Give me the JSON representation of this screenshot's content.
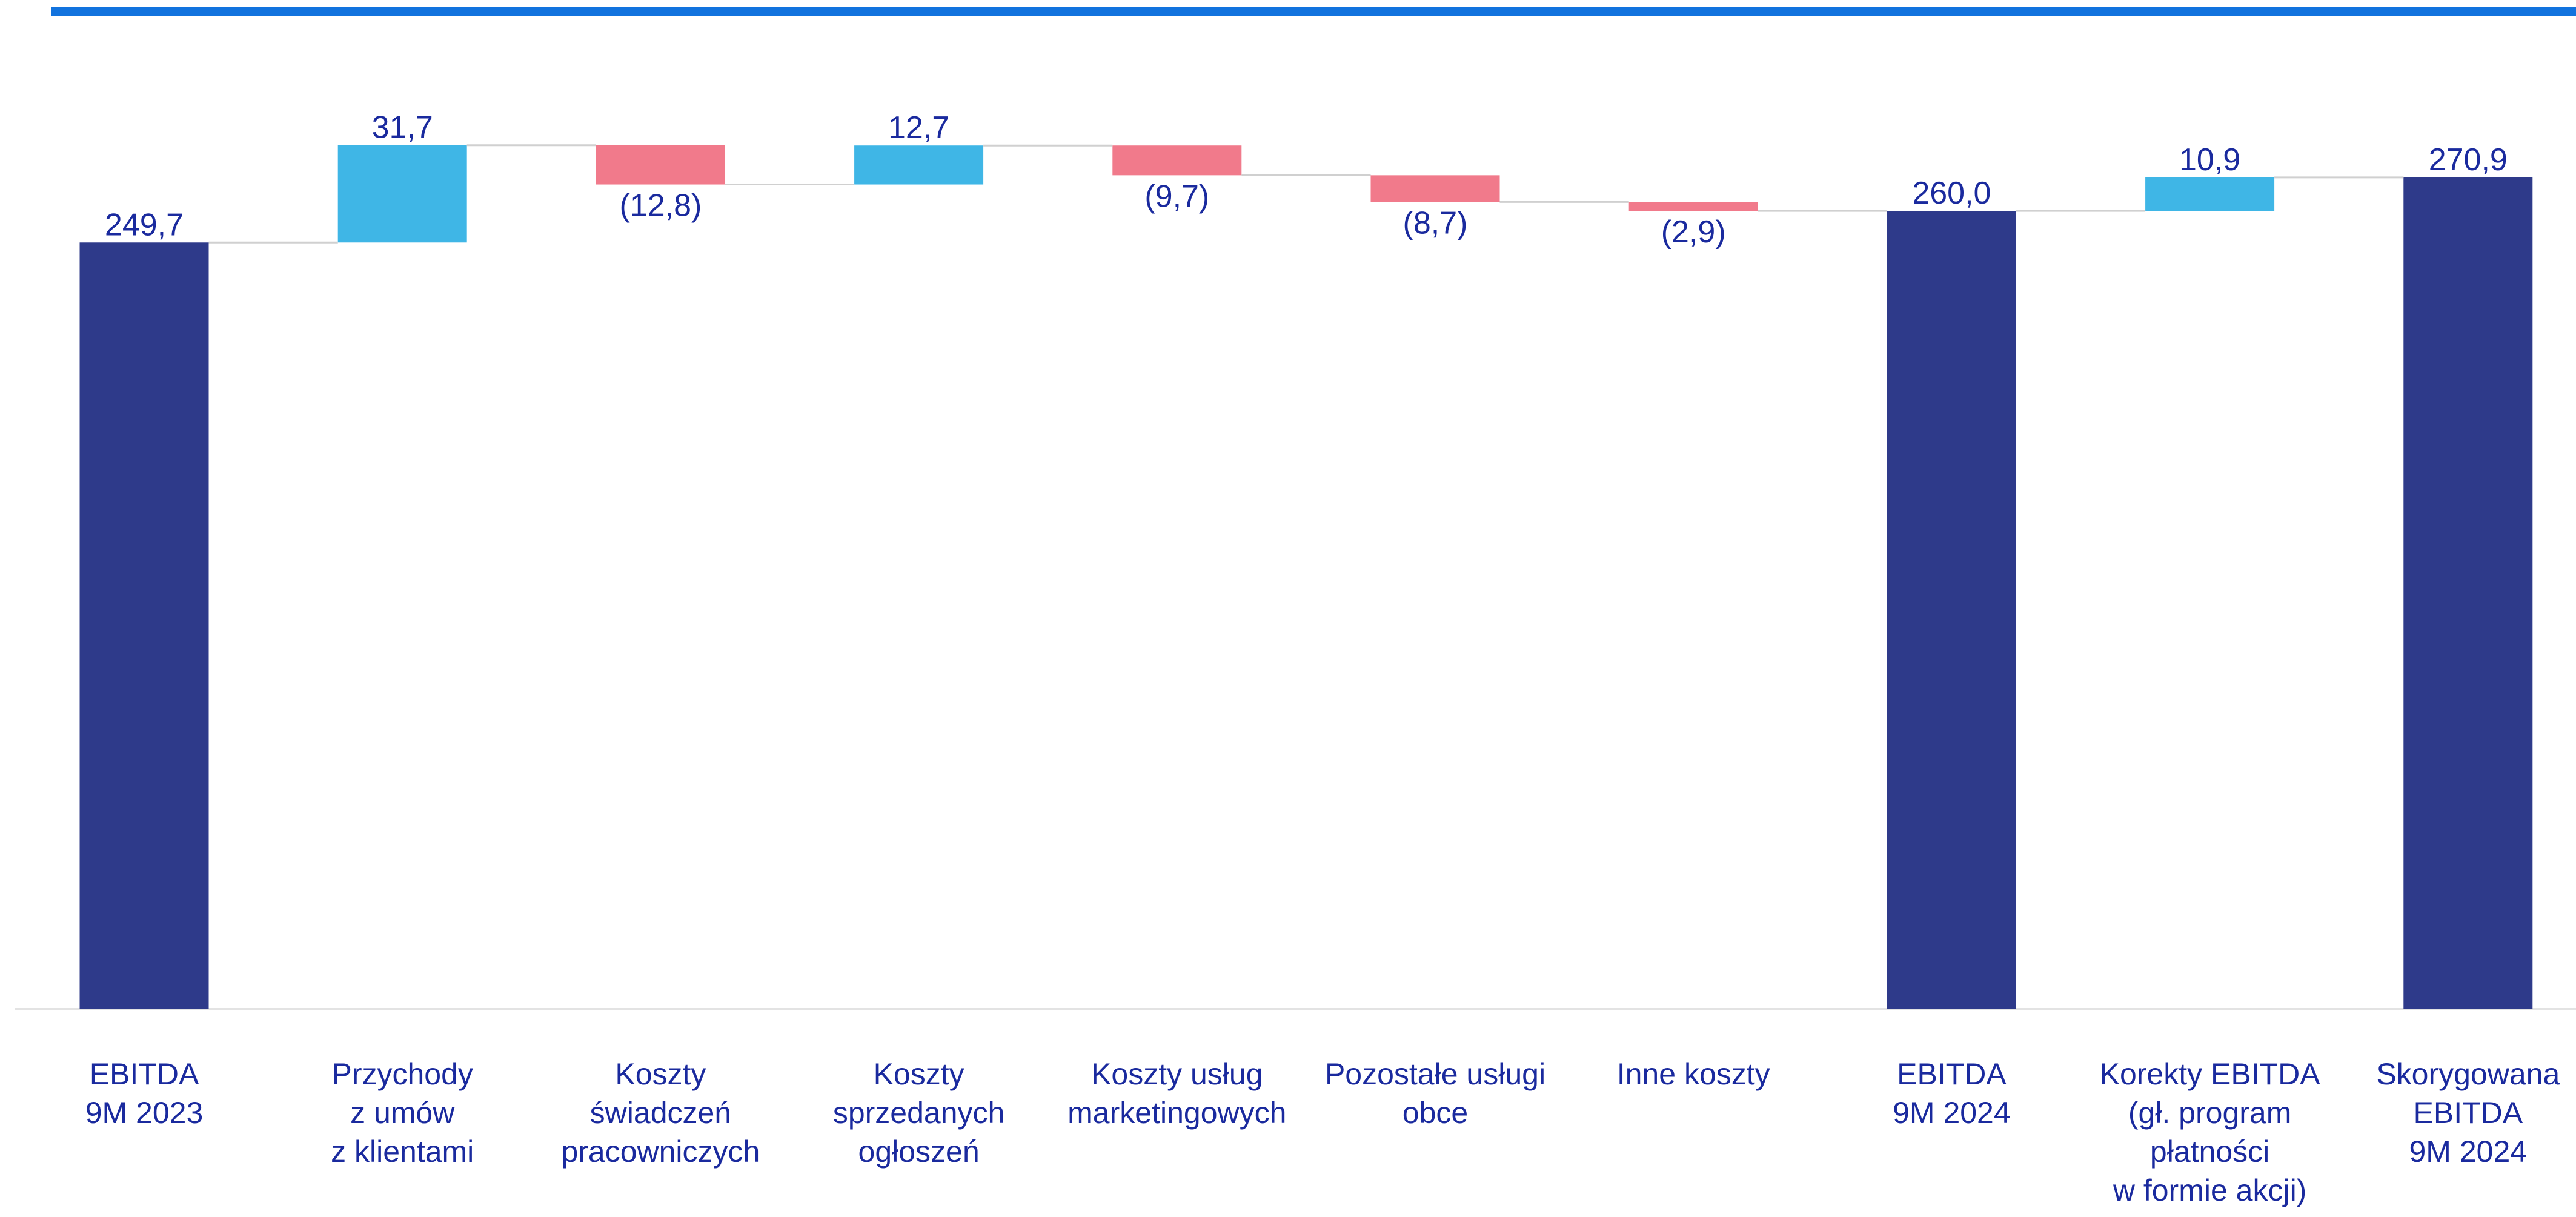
{
  "colors": {
    "top_rule": "#1273de",
    "total": "#2e3a8a",
    "increase": "#3fb6e6",
    "decrease": "#f17a8b",
    "label": "#1a2a9e",
    "connector": "#d0d0d0",
    "baseline": "#e3e3e3"
  },
  "chart_data": {
    "type": "waterfall",
    "ylim": [
      0,
      285
    ],
    "grid": false,
    "legend": "none",
    "categories": [
      [
        "EBITDA",
        "9M 2023"
      ],
      [
        "Przychody",
        "z umów",
        "z klientami"
      ],
      [
        "Koszty",
        "świadczeń",
        "pracowniczych"
      ],
      [
        "Koszty",
        "sprzedanych",
        "ogłoszeń"
      ],
      [
        "Koszty usług",
        "marketingowych"
      ],
      [
        "Pozostałe usługi",
        "obce"
      ],
      [
        "Inne koszty"
      ],
      [
        "EBITDA",
        "9M 2024"
      ],
      [
        "Korekty EBITDA",
        "(gł. program",
        "płatności",
        "w formie akcji)"
      ],
      [
        "Skorygowana",
        "EBITDA",
        "9M 2024"
      ]
    ],
    "values": [
      249.7,
      31.7,
      -12.8,
      12.7,
      -9.7,
      -8.7,
      -2.9,
      260.0,
      10.9,
      270.9
    ],
    "kinds": [
      "total",
      "increase",
      "decrease",
      "increase",
      "decrease",
      "decrease",
      "decrease",
      "total",
      "increase",
      "total"
    ],
    "data_labels": [
      "249,7",
      "31,7",
      "(12,8)",
      "12,7",
      "(9,7)",
      "(8,7)",
      "(2,9)",
      "260,0",
      "10,9",
      "270,9"
    ]
  }
}
